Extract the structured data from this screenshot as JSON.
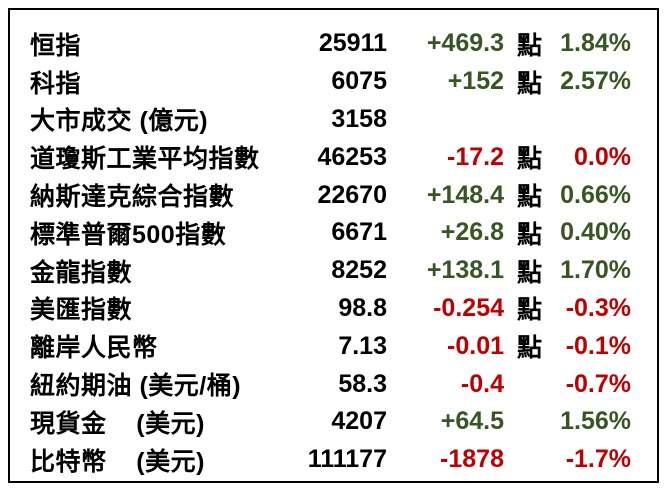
{
  "panel": {
    "title": "market-summary-table",
    "colors": {
      "up": "#375623",
      "down": "#C00000",
      "text": "#000000",
      "border": "#000000",
      "background": "#FFFFFF"
    },
    "unit_label": "點",
    "rows": [
      {
        "label": "恒指",
        "value": "25911",
        "change": "+469.3",
        "unit": "點",
        "percent": "1.84%",
        "direction": "up"
      },
      {
        "label": "科指",
        "value": "6075",
        "change": "+152",
        "unit": "點",
        "percent": "2.57%",
        "direction": "up"
      },
      {
        "label": "大市成交 (億元)",
        "value": "3158",
        "change": "",
        "unit": "",
        "percent": "",
        "direction": "flat"
      },
      {
        "label": "道瓊斯工業平均指數",
        "value": "46253",
        "change": "-17.2",
        "unit": "點",
        "percent": "0.0%",
        "direction": "down"
      },
      {
        "label": "納斯達克綜合指數",
        "value": "22670",
        "change": "+148.4",
        "unit": "點",
        "percent": "0.66%",
        "direction": "up"
      },
      {
        "label": "標準普爾500指數",
        "value": "6671",
        "change": "+26.8",
        "unit": "點",
        "percent": "0.40%",
        "direction": "up"
      },
      {
        "label": "金龍指數",
        "value": "8252",
        "change": "+138.1",
        "unit": "點",
        "percent": "1.70%",
        "direction": "up"
      },
      {
        "label": "美匯指數",
        "value": "98.8",
        "change": "-0.254",
        "unit": "點",
        "percent": "-0.3%",
        "direction": "down"
      },
      {
        "label": "離岸人民幣",
        "value": "7.13",
        "change": "-0.01",
        "unit": "點",
        "percent": "-0.1%",
        "direction": "down"
      },
      {
        "label": "紐約期油 (美元/桶)",
        "value": "58.3",
        "change": "-0.4",
        "unit": "",
        "percent": "-0.7%",
        "direction": "down"
      },
      {
        "label": "現貨金    (美元)",
        "value": "4207",
        "change": "+64.5",
        "unit": "",
        "percent": "1.56%",
        "direction": "up"
      },
      {
        "label": "比特幣    (美元)",
        "value": "111177",
        "change": "-1878",
        "unit": "",
        "percent": "-1.7%",
        "direction": "down"
      }
    ]
  }
}
